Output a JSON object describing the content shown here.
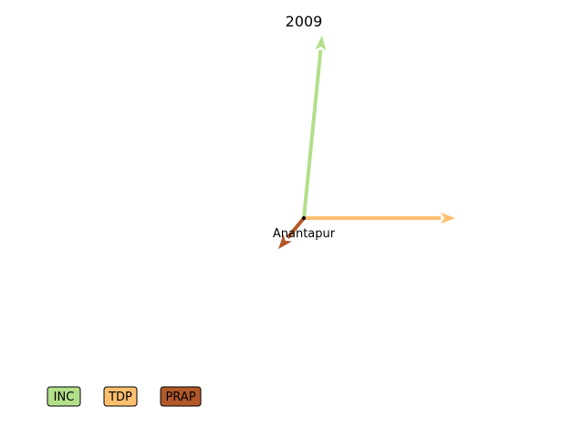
{
  "chart_data": {
    "type": "vector",
    "title": "2009",
    "origin_label": "Anantapur",
    "xlabel": "",
    "ylabel": "",
    "grid": false,
    "legend_placement": "bottom-left",
    "series": [
      {
        "name": "INC",
        "color": "#b2df8a",
        "dx": 0.1,
        "dy": 1.0
      },
      {
        "name": "TDP",
        "color": "#fdbf6f",
        "dx": 0.83,
        "dy": 0.0
      },
      {
        "name": "PRAP",
        "color": "#b15928",
        "dx": -0.14,
        "dy": -0.17
      }
    ]
  }
}
